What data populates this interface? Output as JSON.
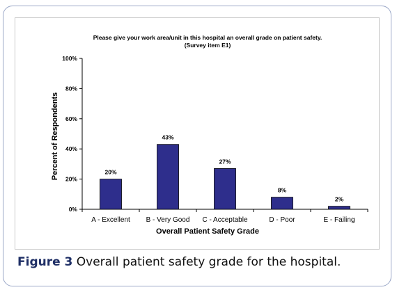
{
  "chart_data": {
    "type": "bar",
    "title": "Please give your work area/unit in this hospital an overall grade on patient safety.",
    "subtitle": "(Survey item E1)",
    "xlabel": "Overall Patient Safety Grade",
    "ylabel": "Percent of Respondents",
    "categories": [
      "A - Excellent",
      "B - Very Good",
      "C - Acceptable",
      "D - Poor",
      "E - Failing"
    ],
    "values": [
      20,
      43,
      27,
      8,
      2
    ],
    "data_labels": [
      "20%",
      "43%",
      "27%",
      "8%",
      "2%"
    ],
    "ylim": [
      0,
      100
    ],
    "yticks": [
      0,
      20,
      40,
      60,
      80,
      100
    ],
    "ytick_labels": [
      "0%",
      "20%",
      "40%",
      "60%",
      "80%",
      "100%"
    ],
    "grid": false,
    "bar_color": "#2e2e8c"
  },
  "caption": {
    "label": "Figure 3",
    "text": "Overall patient safety grade for the hospital."
  }
}
